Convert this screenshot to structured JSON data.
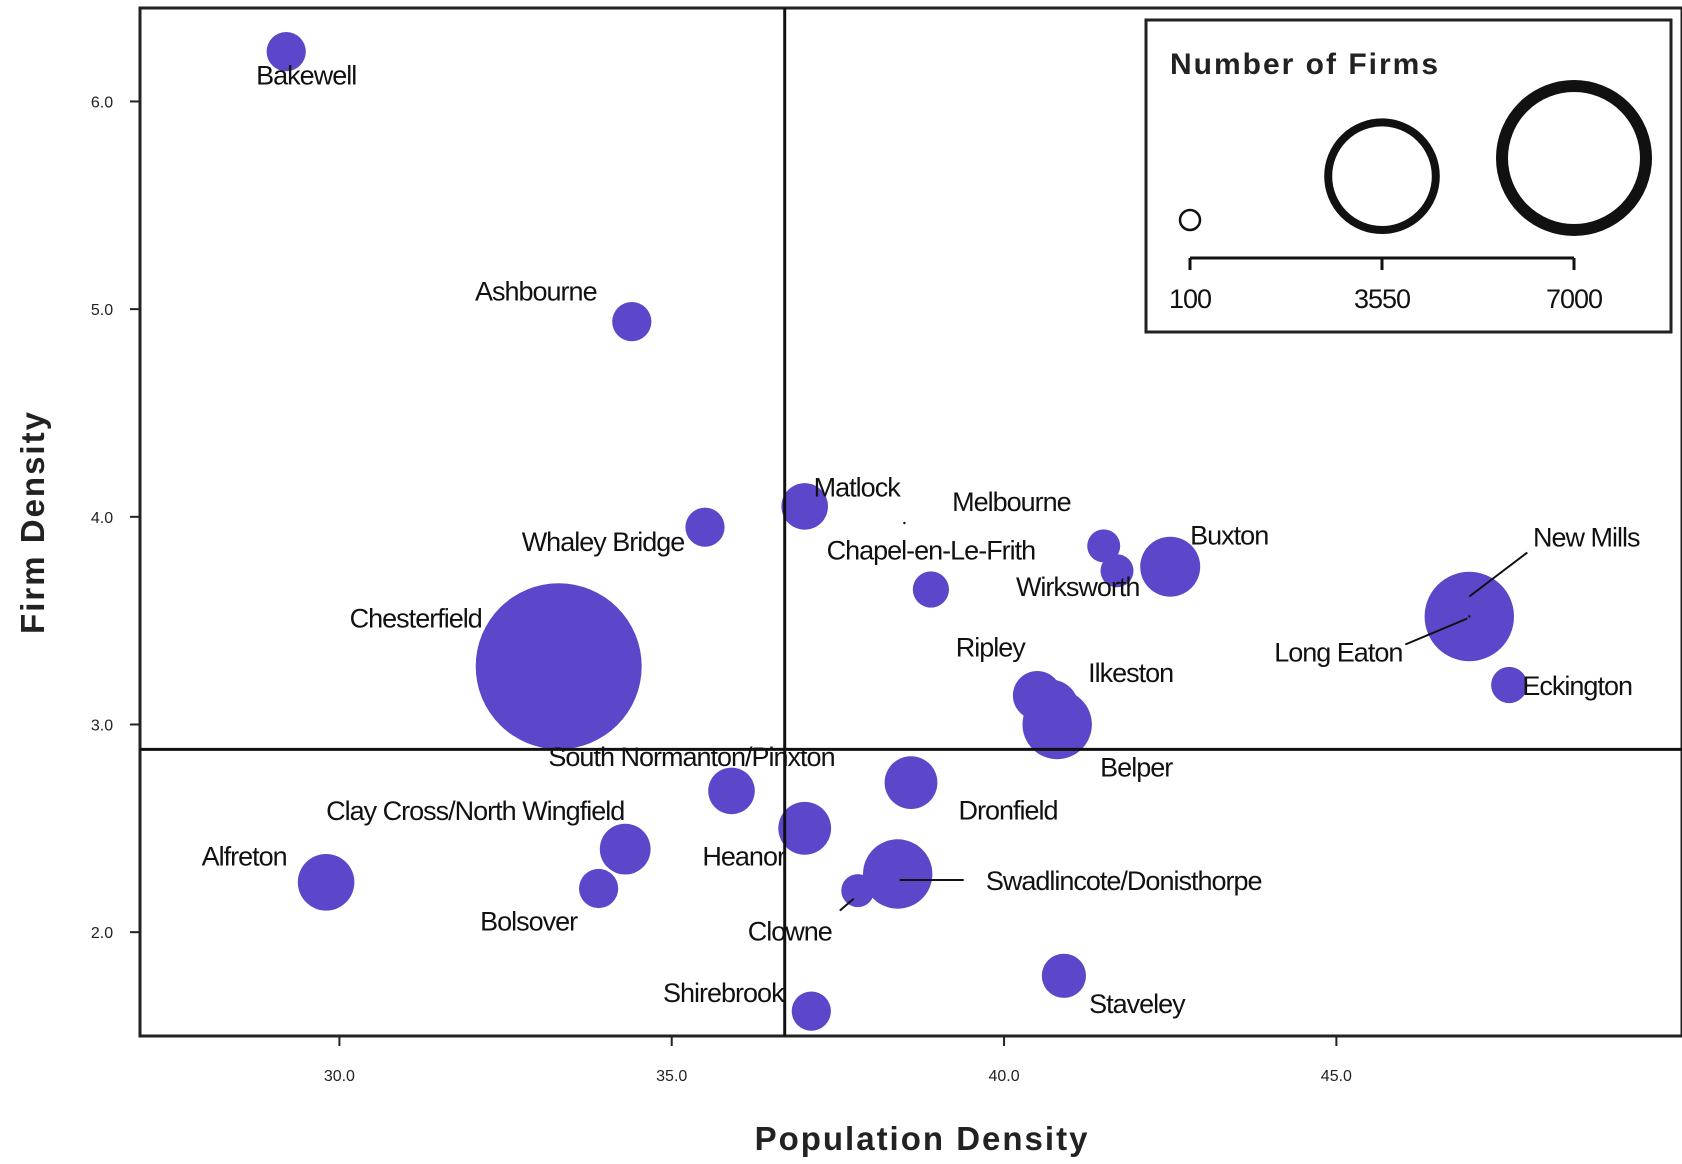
{
  "chart_data": {
    "type": "scatter",
    "title": "",
    "xlabel": "Population Density",
    "ylabel": "Firm Density",
    "xlim": [
      27.0,
      50.2
    ],
    "ylim": [
      1.5,
      6.45
    ],
    "xticks": [
      30.0,
      35.0,
      40.0,
      45.0
    ],
    "xtick_labels": [
      "30.0",
      "35.0",
      "40.0",
      "45.0"
    ],
    "yticks": [
      2.0,
      3.0,
      4.0,
      5.0,
      6.0
    ],
    "ytick_labels": [
      "2.0",
      "3.0",
      "4.0",
      "5.0",
      "6.0"
    ],
    "reference_lines": {
      "x": 36.7,
      "y": 2.88
    },
    "grid": false,
    "bubble_color": "#5c46c9",
    "size_legend": {
      "title": "Number of Firms",
      "values": [
        100,
        3550,
        7000
      ],
      "labels": [
        "100",
        "3550",
        "7000"
      ],
      "placement": "top-right"
    },
    "series": [
      {
        "points": [
          {
            "name": "Bakewell",
            "x": 29.2,
            "y": 6.24,
            "firms": 300
          },
          {
            "name": "Ashbourne",
            "x": 34.4,
            "y": 4.94,
            "firms": 300
          },
          {
            "name": "Matlock",
            "x": 37.0,
            "y": 4.05,
            "firms": 450
          },
          {
            "name": "Whaley Bridge",
            "x": 35.5,
            "y": 3.95,
            "firms": 300
          },
          {
            "name": "Melbourne",
            "x": 38.5,
            "y": 3.97,
            "firms": 0
          },
          {
            "name": "Wirksworth",
            "x": 41.5,
            "y": 3.86,
            "firms": 200
          },
          {
            "name": "Wirksworth",
            "x": 41.7,
            "y": 3.74,
            "firms": 200
          },
          {
            "name": "Buxton",
            "x": 42.5,
            "y": 3.76,
            "firms": 800
          },
          {
            "name": "Chapel-en-Le-Frith",
            "x": 38.9,
            "y": 3.65,
            "firms": 250
          },
          {
            "name": "New Mills",
            "x": 47.0,
            "y": 3.52,
            "firms": 1900
          },
          {
            "name": "Long Eaton",
            "x": 47.0,
            "y": 3.52,
            "firms": 0
          },
          {
            "name": "Chesterfield",
            "x": 33.3,
            "y": 3.28,
            "firms": 7000
          },
          {
            "name": "Ripley",
            "x": 40.5,
            "y": 3.14,
            "firms": 500
          },
          {
            "name": "Ilkeston",
            "x": 40.7,
            "y": 3.08,
            "firms": 700
          },
          {
            "name": "Eckington",
            "x": 47.6,
            "y": 3.19,
            "firms": 250
          },
          {
            "name": "Belper",
            "x": 40.8,
            "y": 3.0,
            "firms": 1100
          },
          {
            "name": "South Normanton/Pinxton",
            "x": 35.9,
            "y": 2.68,
            "firms": 450
          },
          {
            "name": "Dronfield",
            "x": 38.6,
            "y": 2.72,
            "firms": 600
          },
          {
            "name": "Clay Cross/North Wingfield",
            "x": 34.3,
            "y": 2.4,
            "firms": 550
          },
          {
            "name": "Heanor",
            "x": 37.0,
            "y": 2.5,
            "firms": 600
          },
          {
            "name": "Swadlincote/Donisthorpe",
            "x": 38.4,
            "y": 2.28,
            "firms": 1100
          },
          {
            "name": "Alfreton",
            "x": 29.8,
            "y": 2.24,
            "firms": 700
          },
          {
            "name": "Bolsover",
            "x": 33.9,
            "y": 2.21,
            "firms": 300
          },
          {
            "name": "Clowne",
            "x": 37.8,
            "y": 2.2,
            "firms": 200
          },
          {
            "name": "Staveley",
            "x": 40.9,
            "y": 1.79,
            "firms": 400
          },
          {
            "name": "Shirebrook",
            "x": 37.1,
            "y": 1.62,
            "firms": 300
          }
        ]
      }
    ]
  }
}
